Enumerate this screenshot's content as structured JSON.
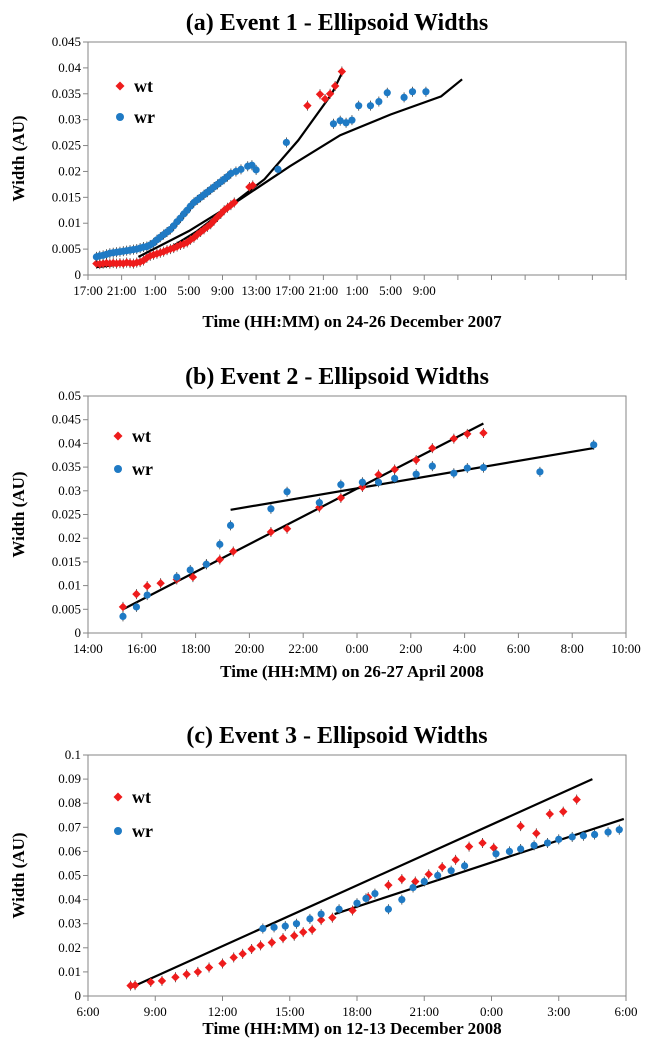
{
  "colors": {
    "wt": "#ee1c1c",
    "wr": "#1f7ac4",
    "trend": "#000000",
    "axis": "#868686"
  },
  "chart_data": [
    {
      "type": "scatter",
      "title": "(a) Event 1 - Ellipsoid Widths",
      "xlabel": "Time (HH:MM) on 24-26 December 2007",
      "ylabel": "Width (AU)",
      "x_units": "hours since 17:00 on 24 December 2007",
      "xlim": [
        0,
        64
      ],
      "ylim": [
        0,
        0.045
      ],
      "x_tick_values": [
        0,
        4,
        8,
        12,
        16,
        20,
        24,
        28,
        32,
        36,
        40,
        44,
        48,
        52,
        56,
        60,
        64
      ],
      "x_tick_labels": [
        "17:00",
        "21:00",
        "1:00",
        "5:00",
        "9:00",
        "13:00",
        "17:00",
        "21:00",
        "1:00",
        "5:00",
        "9:00"
      ],
      "x_tick_label_values": [
        0,
        4,
        8,
        12,
        16,
        20,
        24,
        28,
        32,
        36,
        40
      ],
      "y_ticks": [
        0,
        0.005,
        0.01,
        0.015,
        0.02,
        0.025,
        0.03,
        0.035,
        0.04,
        0.045
      ],
      "y_tick_labels": [
        "0",
        "0.005",
        "0.01",
        "0.015",
        "0.02",
        "0.025",
        "0.03",
        "0.035",
        "0.04",
        "0.045"
      ],
      "legend": [
        "wt",
        "wr"
      ],
      "legend_position": "top-left",
      "series": [
        {
          "name": "wt",
          "marker": "diamond",
          "x": [
            1.0,
            1.4,
            1.8,
            2.2,
            2.6,
            3.0,
            3.4,
            3.8,
            4.2,
            4.6,
            5.0,
            5.4,
            5.8,
            6.2,
            6.6,
            7.0,
            7.4,
            7.8,
            8.2,
            8.6,
            9.0,
            9.4,
            9.8,
            10.2,
            10.6,
            11.0,
            11.4,
            11.8,
            12.2,
            12.6,
            13.0,
            13.4,
            13.8,
            14.2,
            14.6,
            15.0,
            15.4,
            15.8,
            16.2,
            16.6,
            17.0,
            17.4,
            19.2,
            19.6,
            26.1,
            27.6,
            28.2,
            28.8,
            29.4,
            30.2
          ],
          "y": [
            0.0022,
            0.0021,
            0.0022,
            0.0023,
            0.0022,
            0.0023,
            0.0022,
            0.0023,
            0.0022,
            0.0024,
            0.0023,
            0.0022,
            0.0024,
            0.0025,
            0.0028,
            0.0033,
            0.0037,
            0.0039,
            0.0041,
            0.0043,
            0.0045,
            0.0048,
            0.005,
            0.0052,
            0.0055,
            0.0058,
            0.006,
            0.0063,
            0.0068,
            0.0072,
            0.0078,
            0.0083,
            0.0088,
            0.0093,
            0.0098,
            0.0105,
            0.0112,
            0.0118,
            0.0125,
            0.013,
            0.0135,
            0.014,
            0.017,
            0.0173,
            0.0327,
            0.0349,
            0.034,
            0.035,
            0.0365,
            0.0393
          ]
        },
        {
          "name": "wr",
          "marker": "circle",
          "x": [
            1.0,
            1.4,
            1.8,
            2.2,
            2.6,
            3.0,
            3.4,
            3.8,
            4.2,
            4.6,
            5.0,
            5.4,
            5.8,
            6.2,
            6.6,
            7.0,
            7.4,
            7.8,
            8.2,
            8.6,
            9.0,
            9.4,
            9.8,
            10.2,
            10.6,
            11.0,
            11.4,
            11.8,
            12.2,
            12.6,
            13.0,
            13.4,
            13.8,
            14.2,
            14.6,
            15.0,
            15.4,
            15.8,
            16.2,
            16.6,
            17.0,
            17.6,
            18.2,
            19.0,
            19.5,
            20.0,
            22.6,
            23.6,
            29.2,
            30.0,
            30.7,
            31.4,
            32.2,
            33.6,
            34.6,
            35.6,
            37.6,
            38.6,
            40.2
          ],
          "y": [
            0.0035,
            0.0037,
            0.0038,
            0.004,
            0.0042,
            0.0043,
            0.0044,
            0.0045,
            0.0046,
            0.0047,
            0.0048,
            0.0049,
            0.005,
            0.0052,
            0.0054,
            0.0055,
            0.0058,
            0.0062,
            0.0068,
            0.0073,
            0.0078,
            0.0083,
            0.0088,
            0.0095,
            0.0103,
            0.011,
            0.0118,
            0.0125,
            0.0133,
            0.014,
            0.0145,
            0.015,
            0.0155,
            0.016,
            0.0165,
            0.017,
            0.0175,
            0.018,
            0.0185,
            0.019,
            0.0196,
            0.02,
            0.0204,
            0.021,
            0.0212,
            0.0203,
            0.0204,
            0.0256,
            0.0292,
            0.0298,
            0.0294,
            0.0299,
            0.0327,
            0.0327,
            0.0335,
            0.0352,
            0.0343,
            0.0354,
            0.0354
          ]
        }
      ],
      "trendlines": [
        {
          "name": "wt-fit",
          "x": [
            1.0,
            5.0,
            9.0,
            13.0,
            17.0,
            21.0,
            25.0,
            29.0,
            30.2
          ],
          "y": [
            0.0015,
            0.0022,
            0.0045,
            0.0085,
            0.0135,
            0.0185,
            0.026,
            0.035,
            0.039
          ]
        },
        {
          "name": "wr-fit",
          "x": [
            6.0,
            12.0,
            18.0,
            24.0,
            30.0,
            36.0,
            42.0,
            44.5
          ],
          "y": [
            0.0035,
            0.0085,
            0.0145,
            0.021,
            0.027,
            0.031,
            0.0345,
            0.0378
          ]
        }
      ]
    },
    {
      "type": "scatter",
      "title": "(b) Event 2 - Ellipsoid Widths",
      "xlabel": "Time (HH:MM) on 26-27 April 2008",
      "ylabel": "Width (AU)",
      "x_units": "hours since 14:00 on 26 April 2008",
      "xlim": [
        0,
        20
      ],
      "ylim": [
        0,
        0.05
      ],
      "x_tick_values": [
        0,
        2,
        4,
        6,
        8,
        10,
        12,
        14,
        16,
        18,
        20
      ],
      "x_tick_labels": [
        "14:00",
        "16:00",
        "18:00",
        "20:00",
        "22:00",
        "0:00",
        "2:00",
        "4:00",
        "6:00",
        "8:00",
        "10:00"
      ],
      "x_tick_label_values": [
        0,
        2,
        4,
        6,
        8,
        10,
        12,
        14,
        16,
        18,
        20
      ],
      "y_ticks": [
        0,
        0.005,
        0.01,
        0.015,
        0.02,
        0.025,
        0.03,
        0.035,
        0.04,
        0.045,
        0.05
      ],
      "y_tick_labels": [
        "0",
        "0.005",
        "0.01",
        "0.015",
        "0.02",
        "0.025",
        "0.03",
        "0.035",
        "0.04",
        "0.045",
        "0.05"
      ],
      "legend": [
        "wt",
        "wr"
      ],
      "legend_position": "top-left",
      "series": [
        {
          "name": "wt",
          "marker": "diamond",
          "x": [
            1.3,
            1.8,
            2.2,
            2.7,
            3.3,
            3.9,
            4.4,
            4.9,
            5.4,
            6.8,
            7.4,
            8.6,
            9.4,
            10.2,
            10.8,
            11.4,
            12.2,
            12.8,
            13.6,
            14.1,
            14.7
          ],
          "y": [
            0.0055,
            0.0082,
            0.0099,
            0.0105,
            0.0113,
            0.0118,
            0.0145,
            0.0155,
            0.0172,
            0.0213,
            0.022,
            0.0265,
            0.0285,
            0.0308,
            0.0334,
            0.0345,
            0.0365,
            0.039,
            0.041,
            0.042,
            0.0422
          ]
        },
        {
          "name": "wr",
          "marker": "circle",
          "x": [
            1.3,
            1.8,
            2.2,
            3.3,
            3.8,
            4.4,
            4.9,
            5.3,
            6.8,
            7.4,
            8.6,
            9.4,
            10.2,
            10.8,
            11.4,
            12.2,
            12.8,
            13.6,
            14.1,
            14.7,
            16.8,
            18.8
          ],
          "y": [
            0.0035,
            0.0055,
            0.008,
            0.0118,
            0.0133,
            0.0145,
            0.0187,
            0.0227,
            0.0262,
            0.0298,
            0.0275,
            0.0313,
            0.0318,
            0.0318,
            0.0326,
            0.0335,
            0.0352,
            0.0337,
            0.0348,
            0.0349,
            0.034,
            0.0397
          ]
        }
      ],
      "trendlines": [
        {
          "name": "wt-fit",
          "x": [
            1.3,
            14.7
          ],
          "y": [
            0.005,
            0.0442
          ]
        },
        {
          "name": "wr-fit",
          "x": [
            5.3,
            18.8
          ],
          "y": [
            0.026,
            0.039
          ]
        }
      ]
    },
    {
      "type": "scatter",
      "title": "(c) Event 3 - Ellipsoid Widths",
      "xlabel": "Time (HH:MM) on 12-13 December 2008",
      "ylabel": "Width (AU)",
      "x_units": "hours since 6:00 on 12 December 2008",
      "xlim": [
        0,
        24
      ],
      "ylim": [
        0,
        0.1
      ],
      "x_tick_values": [
        0,
        3,
        6,
        9,
        12,
        15,
        18,
        21,
        24
      ],
      "x_tick_labels": [
        "6:00",
        "9:00",
        "12:00",
        "15:00",
        "18:00",
        "21:00",
        "0:00",
        "3:00",
        "6:00"
      ],
      "x_tick_label_values": [
        0,
        3,
        6,
        9,
        12,
        15,
        18,
        21,
        24
      ],
      "y_ticks": [
        0,
        0.01,
        0.02,
        0.03,
        0.04,
        0.05,
        0.06,
        0.07,
        0.08,
        0.09,
        0.1
      ],
      "y_tick_labels": [
        "0",
        "0.01",
        "0.02",
        "0.03",
        "0.04",
        "0.05",
        "0.06",
        "0.07",
        "0.08",
        "0.09",
        "0.1"
      ],
      "legend": [
        "wt",
        "wr"
      ],
      "legend_position": "top-left",
      "series": [
        {
          "name": "wt",
          "marker": "diamond",
          "x": [
            1.9,
            2.1,
            2.8,
            3.3,
            3.9,
            4.4,
            4.9,
            5.4,
            6.0,
            6.5,
            6.9,
            7.3,
            7.7,
            8.2,
            8.7,
            9.2,
            9.6,
            10.0,
            10.4,
            10.9,
            11.8,
            12.5,
            13.4,
            14.0,
            14.6,
            15.2,
            15.8,
            16.4,
            17.0,
            17.6,
            18.1,
            19.3,
            20.0,
            20.6,
            21.2,
            21.8
          ],
          "y": [
            0.0043,
            0.0045,
            0.0058,
            0.0063,
            0.0078,
            0.009,
            0.01,
            0.0118,
            0.0135,
            0.016,
            0.0175,
            0.0195,
            0.021,
            0.0222,
            0.024,
            0.025,
            0.0265,
            0.0275,
            0.0315,
            0.0325,
            0.0355,
            0.041,
            0.046,
            0.0485,
            0.0475,
            0.0505,
            0.0535,
            0.0565,
            0.062,
            0.0635,
            0.0615,
            0.0705,
            0.0675,
            0.0755,
            0.0765,
            0.0815
          ]
        },
        {
          "name": "wr",
          "marker": "circle",
          "x": [
            7.8,
            8.3,
            8.8,
            9.3,
            9.9,
            10.4,
            11.2,
            12.0,
            12.4,
            12.8,
            13.4,
            14.0,
            14.5,
            15.0,
            15.6,
            16.2,
            16.8,
            18.2,
            18.8,
            19.3,
            19.9,
            20.5,
            21.0,
            21.6,
            22.1,
            22.6,
            23.2,
            23.7
          ],
          "y": [
            0.028,
            0.0285,
            0.029,
            0.03,
            0.032,
            0.034,
            0.036,
            0.0385,
            0.0405,
            0.0425,
            0.036,
            0.04,
            0.045,
            0.0475,
            0.05,
            0.052,
            0.054,
            0.059,
            0.06,
            0.061,
            0.0625,
            0.0635,
            0.065,
            0.066,
            0.0665,
            0.067,
            0.068,
            0.069
          ]
        }
      ],
      "trendlines": [
        {
          "name": "wt-fit",
          "x": [
            1.9,
            22.5
          ],
          "y": [
            0.0035,
            0.09
          ]
        },
        {
          "name": "wr-fit",
          "x": [
            11.0,
            23.9
          ],
          "y": [
            0.034,
            0.0735
          ]
        }
      ]
    }
  ]
}
